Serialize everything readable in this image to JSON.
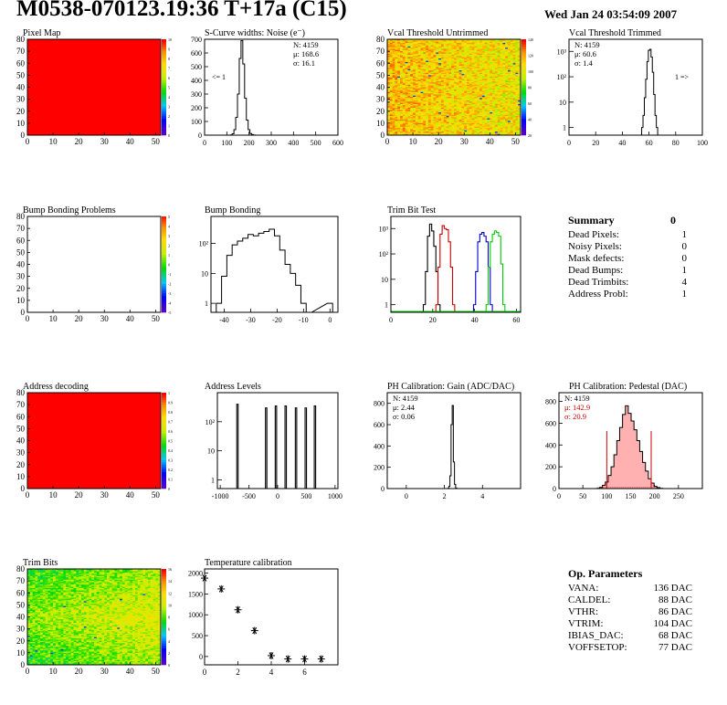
{
  "header": {
    "title": "M0538-070123.19:36 T+17a (C15)",
    "timestamp": "Wed Jan 24 03:54:09 2007"
  },
  "summary": {
    "title": "Summary",
    "total": "0",
    "rows": [
      {
        "label": "Dead Pixels:",
        "value": "1"
      },
      {
        "label": "Noisy Pixels:",
        "value": "0"
      },
      {
        "label": "Mask defects:",
        "value": "0"
      },
      {
        "label": "Dead Bumps:",
        "value": "1"
      },
      {
        "label": "Dead Trimbits:",
        "value": "4"
      },
      {
        "label": "Address Probl:",
        "value": "1"
      }
    ]
  },
  "op_params": {
    "title": "Op. Parameters",
    "rows": [
      {
        "label": "VANA:",
        "value": "136 DAC"
      },
      {
        "label": "CALDEL:",
        "value": "88 DAC"
      },
      {
        "label": "VTHR:",
        "value": "86 DAC"
      },
      {
        "label": "VTRIM:",
        "value": "104 DAC"
      },
      {
        "label": "IBIAS_DAC:",
        "value": "68 DAC"
      },
      {
        "label": "VOFFSETOP:",
        "value": "77 DAC"
      }
    ]
  },
  "chart_data": [
    {
      "id": "pixel-map",
      "type": "heatmap",
      "title": "Pixel Map",
      "xlim": [
        0,
        52
      ],
      "ylim": [
        0,
        80
      ],
      "xticks": [
        0,
        10,
        20,
        30,
        40,
        50
      ],
      "yticks": [
        0,
        10,
        20,
        30,
        40,
        50,
        60,
        70,
        80
      ],
      "fill": "uniform-max",
      "zticks": [
        "10",
        "9",
        "8",
        "7",
        "6",
        "5",
        "4",
        "3",
        "2",
        "1",
        "0"
      ]
    },
    {
      "id": "scurve",
      "type": "histogram",
      "title": "S-Curve widths: Noise (e⁻)",
      "xlim": [
        0,
        600
      ],
      "ylim": [
        0,
        700
      ],
      "xticks": [
        0,
        100,
        200,
        300,
        400,
        500,
        600
      ],
      "yticks": [
        0,
        100,
        200,
        300,
        400,
        500,
        600,
        700
      ],
      "stats": [
        "N: 4159",
        "μ: 168.6",
        "σ: 16.1"
      ],
      "annotation": "<= 1",
      "bins_x": [
        120,
        128,
        136,
        144,
        152,
        160,
        168,
        176,
        184,
        192,
        200,
        208,
        216,
        224,
        232
      ],
      "values": [
        2,
        10,
        40,
        130,
        300,
        560,
        690,
        520,
        270,
        110,
        40,
        12,
        4,
        1,
        0
      ]
    },
    {
      "id": "vcal-untrimmed",
      "type": "heatmap",
      "title": "Vcal Threshold Untrimmed",
      "xlim": [
        0,
        52
      ],
      "ylim": [
        0,
        80
      ],
      "xticks": [
        0,
        10,
        20,
        30,
        40,
        50
      ],
      "yticks": [
        0,
        10,
        20,
        30,
        40,
        50,
        60,
        70,
        80
      ],
      "fill": "noise-orange-yellow",
      "zticks": [
        "140",
        "120",
        "100",
        "80",
        "60",
        "40",
        "20"
      ]
    },
    {
      "id": "vcal-trimmed",
      "type": "histogram",
      "title": "Vcal Threshold Trimmed",
      "xlim": [
        0,
        100
      ],
      "log": true,
      "ylim": [
        0.5,
        3000
      ],
      "xticks": [
        0,
        20,
        40,
        60,
        80,
        100
      ],
      "yticks_labels": [
        "1",
        "10",
        "10²",
        "10³"
      ],
      "stats": [
        "N: 4159",
        "μ: 60.6",
        "σ: 1.4"
      ],
      "annotation": "1 =>",
      "bins_x": [
        55,
        56,
        57,
        58,
        59,
        60,
        61,
        62,
        63,
        64,
        65,
        66
      ],
      "values": [
        1,
        3,
        15,
        80,
        400,
        1100,
        1200,
        600,
        150,
        20,
        3,
        1
      ]
    },
    {
      "id": "bump-problems",
      "type": "heatmap",
      "title": "Bump Bonding Problems",
      "xlim": [
        0,
        52
      ],
      "ylim": [
        0,
        80
      ],
      "xticks": [
        0,
        10,
        20,
        30,
        40,
        50
      ],
      "yticks": [
        0,
        10,
        20,
        30,
        40,
        50,
        60,
        70,
        80
      ],
      "fill": "empty",
      "zticks": [
        "5",
        "4",
        "3",
        "2",
        "1",
        "0",
        "-1",
        "-2",
        "-3",
        "-4",
        "-5"
      ]
    },
    {
      "id": "bump-bonding",
      "type": "histogram",
      "title": "Bump Bonding",
      "xlim": [
        -45,
        3
      ],
      "log": true,
      "ylim": [
        0.5,
        800
      ],
      "xticks": [
        -40,
        -30,
        -20,
        -10,
        0
      ],
      "yticks_labels": [
        "1",
        "10",
        "10²"
      ],
      "bins_x": [
        -42,
        -40,
        -38,
        -36,
        -34,
        -32,
        -30,
        -28,
        -26,
        -24,
        -22,
        -20,
        -18,
        -16,
        -14,
        -12,
        -10,
        -8,
        0
      ],
      "values": [
        1,
        8,
        40,
        90,
        120,
        150,
        200,
        180,
        220,
        250,
        300,
        180,
        60,
        20,
        10,
        4,
        1,
        0,
        1
      ]
    },
    {
      "id": "trim-bit-test",
      "type": "line",
      "title": "Trim Bit Test",
      "xlim": [
        0,
        62
      ],
      "log": true,
      "ylim": [
        0.5,
        3000
      ],
      "xticks": [
        0,
        20,
        40,
        60
      ],
      "yticks_labels": [
        "1",
        "10",
        "10²",
        "10³"
      ],
      "series": [
        {
          "color": "#000000",
          "x": [
            16,
            17,
            18,
            19,
            20,
            21,
            22,
            23
          ],
          "values": [
            1,
            20,
            500,
            1500,
            800,
            200,
            20,
            1
          ]
        },
        {
          "color": "#cc0000",
          "x": [
            22,
            23,
            24,
            25,
            26,
            27,
            28,
            29,
            30
          ],
          "values": [
            1,
            30,
            600,
            1300,
            1000,
            900,
            300,
            30,
            1
          ]
        },
        {
          "color": "#0000cc",
          "x": [
            40,
            41,
            42,
            43,
            44,
            45,
            46,
            47,
            48
          ],
          "values": [
            1,
            20,
            300,
            600,
            700,
            500,
            300,
            30,
            1
          ]
        },
        {
          "color": "#00cc00",
          "x": [
            46,
            47,
            48,
            49,
            50,
            51,
            52,
            53,
            54
          ],
          "values": [
            1,
            30,
            300,
            600,
            800,
            700,
            500,
            40,
            1
          ]
        }
      ]
    },
    {
      "id": "address-decoding",
      "type": "heatmap",
      "title": "Address decoding",
      "xlim": [
        0,
        52
      ],
      "ylim": [
        0,
        80
      ],
      "xticks": [
        0,
        10,
        20,
        30,
        40,
        50
      ],
      "yticks": [
        0,
        10,
        20,
        30,
        40,
        50,
        60,
        70,
        80
      ],
      "fill": "uniform-max",
      "zticks": [
        "1",
        "0.9",
        "0.8",
        "0.7",
        "0.6",
        "0.5",
        "0.4",
        "0.3",
        "0.2",
        "0.1",
        "0"
      ]
    },
    {
      "id": "address-levels",
      "type": "histogram",
      "title": "Address Levels",
      "xlim": [
        -1050,
        1050
      ],
      "log": true,
      "ylim": [
        0.5,
        1000
      ],
      "xticks": [
        -1000,
        -500,
        0,
        500,
        1000
      ],
      "yticks_labels": [
        "1",
        "10",
        "10²"
      ],
      "peaks": [
        -700,
        -200,
        -30,
        140,
        320,
        490,
        650
      ],
      "peak_heights": [
        400,
        300,
        350,
        350,
        300,
        300,
        350
      ]
    },
    {
      "id": "ph-gain",
      "type": "histogram",
      "title": "PH Calibration: Gain (ADC/DAC)",
      "xlim": [
        -1,
        6
      ],
      "ylim": [
        0,
        900
      ],
      "xticks": [
        0,
        2,
        4
      ],
      "yticks": [
        0,
        200,
        400,
        600,
        800
      ],
      "stats": [
        "N: 4159",
        "μ: 2.44",
        "σ: 0.06"
      ],
      "bins_x": [
        2.2,
        2.26,
        2.32,
        2.38,
        2.44,
        2.5,
        2.56,
        2.62
      ],
      "values": [
        2,
        20,
        120,
        600,
        780,
        250,
        40,
        5
      ]
    },
    {
      "id": "ph-pedestal",
      "type": "histogram",
      "title": "PH Calibration: Pedestal (DAC)",
      "xlim": [
        0,
        300
      ],
      "ylim": [
        0,
        880
      ],
      "xticks": [
        0,
        50,
        100,
        150,
        200,
        250
      ],
      "yticks": [
        0,
        200,
        400,
        600,
        800
      ],
      "stats": [
        "N: 4159",
        "μ: 142.9",
        "σ: 20.9"
      ],
      "bins_x": [
        82,
        88,
        94,
        100,
        106,
        112,
        118,
        124,
        130,
        136,
        142,
        148,
        154,
        160,
        166,
        172,
        178,
        184,
        190,
        196,
        202,
        208,
        214
      ],
      "values": [
        2,
        10,
        30,
        60,
        120,
        200,
        310,
        440,
        560,
        680,
        760,
        690,
        620,
        540,
        440,
        340,
        240,
        160,
        90,
        50,
        20,
        8,
        2
      ]
    },
    {
      "id": "trim-bits",
      "type": "heatmap",
      "title": "Trim Bits",
      "xlim": [
        0,
        52
      ],
      "ylim": [
        0,
        80
      ],
      "xticks": [
        0,
        10,
        20,
        30,
        40,
        50
      ],
      "yticks": [
        0,
        10,
        20,
        30,
        40,
        50,
        60,
        70,
        80
      ],
      "fill": "noise-green-yellow",
      "zticks": [
        "16",
        "14",
        "12",
        "10",
        "8",
        "6",
        "4",
        "2",
        "0"
      ]
    },
    {
      "id": "temperature",
      "type": "scatter",
      "title": "Temperature calibration",
      "xlim": [
        0,
        8
      ],
      "ylim": [
        -200,
        2100
      ],
      "xticks": [
        0,
        2,
        4,
        6
      ],
      "yticks": [
        0,
        500,
        1000,
        1500,
        2000
      ],
      "x": [
        0,
        1,
        2,
        3,
        4,
        5,
        6,
        7
      ],
      "values": [
        1880,
        1620,
        1120,
        620,
        20,
        -60,
        -60,
        -60
      ]
    }
  ]
}
